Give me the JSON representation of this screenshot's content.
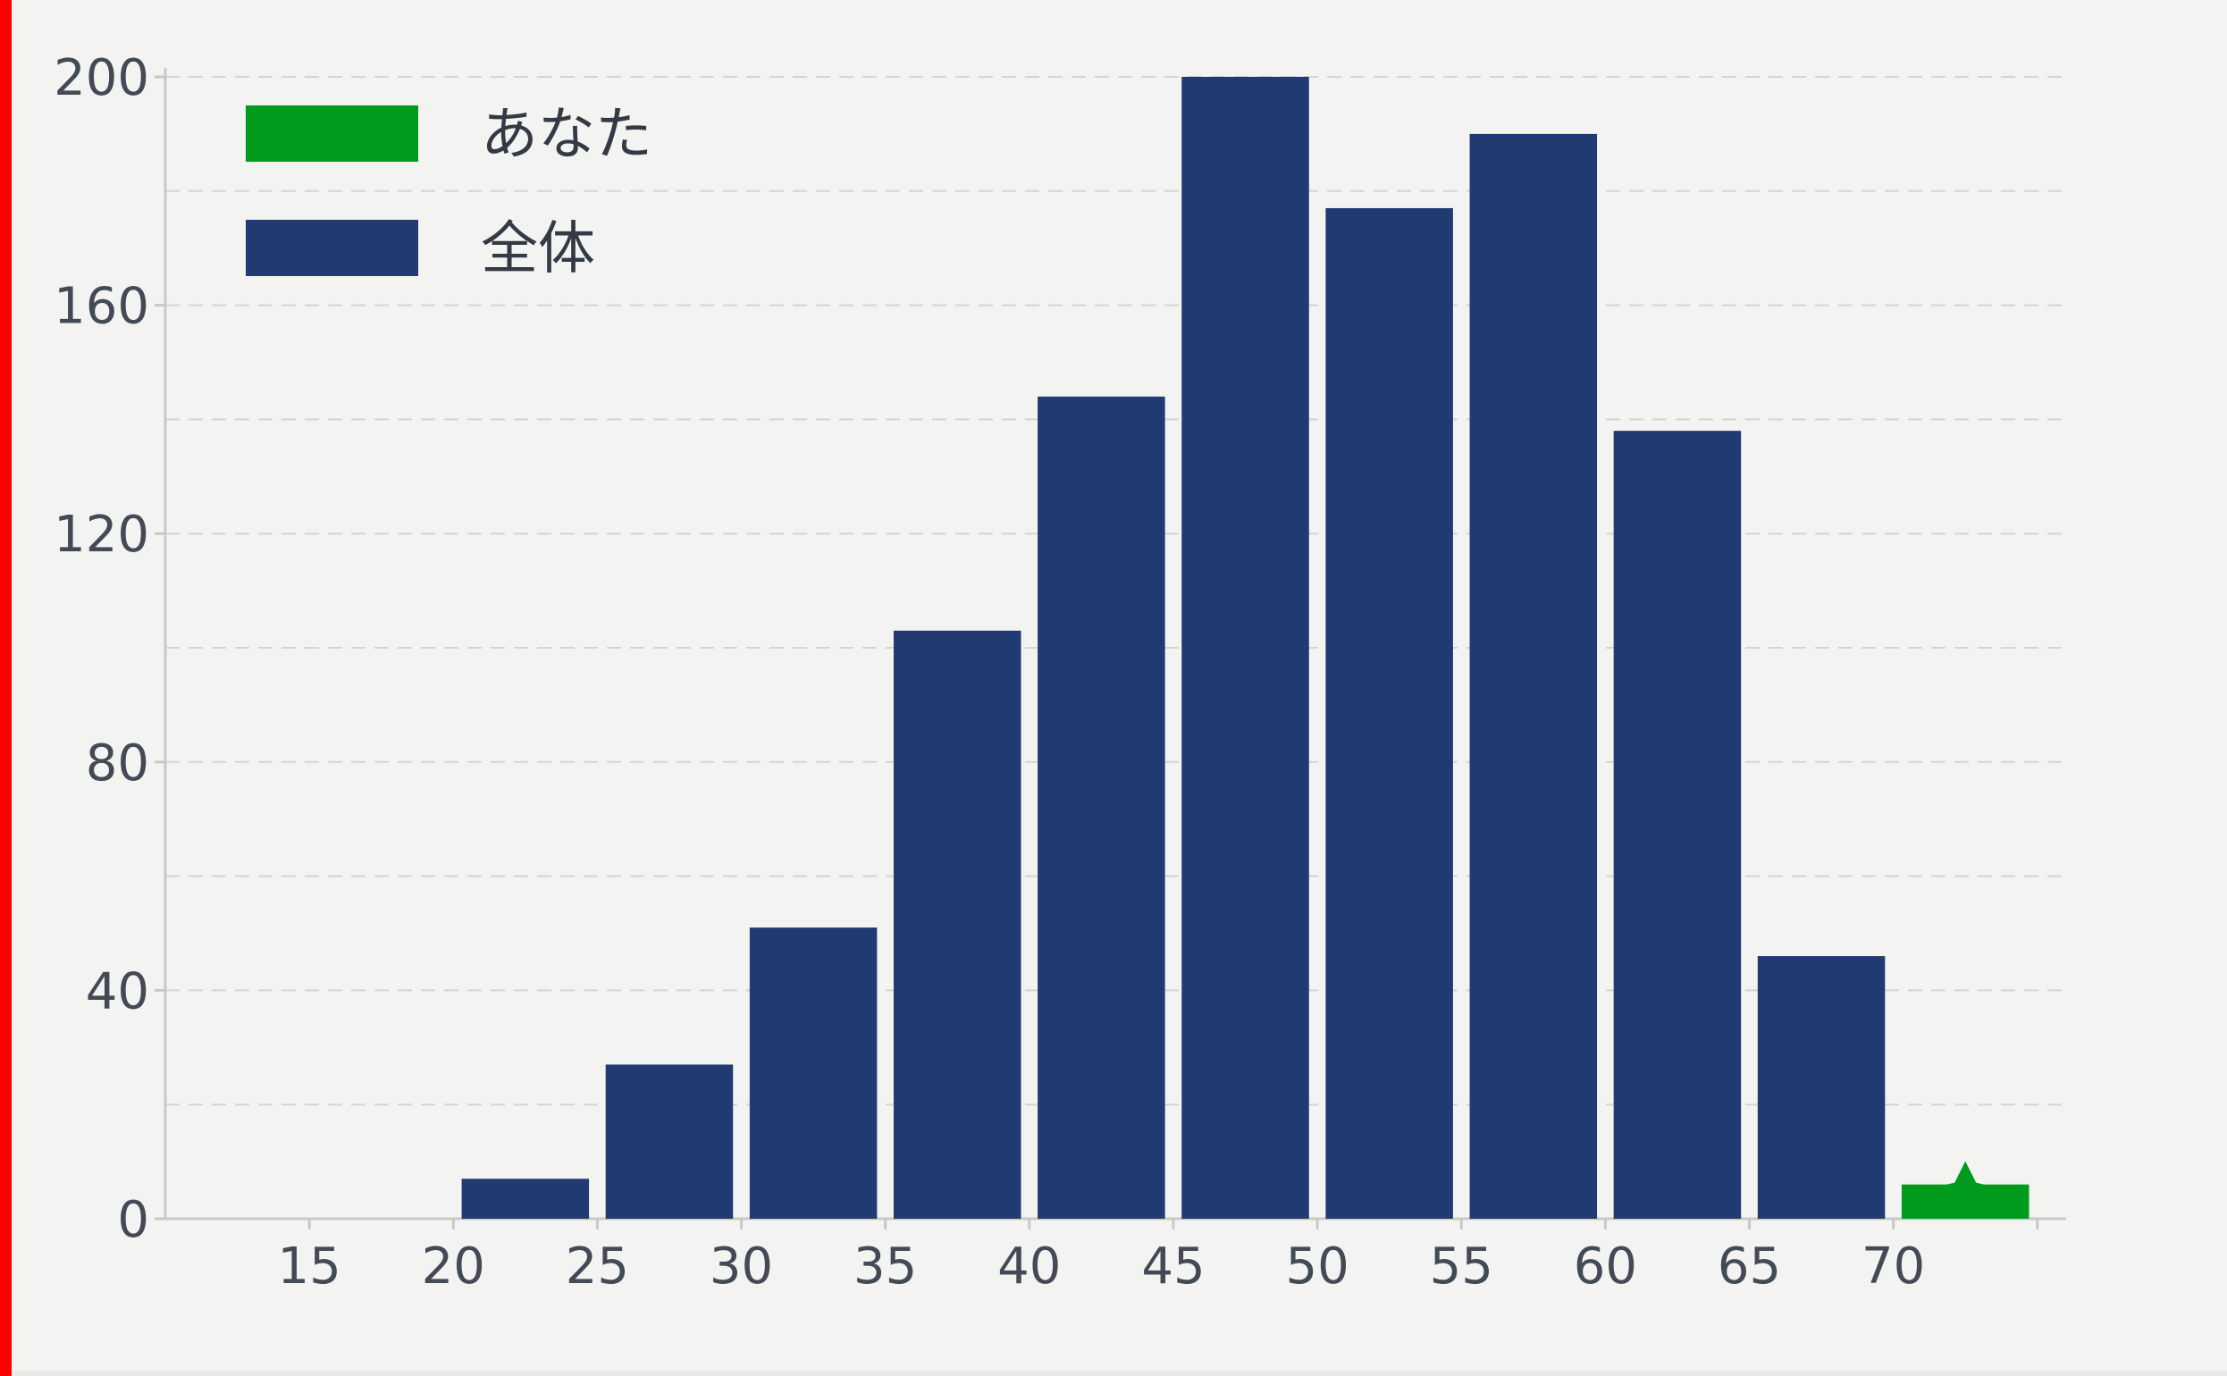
{
  "chart_data": {
    "type": "bar",
    "x_ticks": [
      "15",
      "20",
      "25",
      "30",
      "35",
      "40",
      "45",
      "50",
      "55",
      "60",
      "65",
      "70"
    ],
    "bins": [
      {
        "from": 20,
        "to": 25,
        "value": 7
      },
      {
        "from": 25,
        "to": 30,
        "value": 27
      },
      {
        "from": 30,
        "to": 35,
        "value": 51
      },
      {
        "from": 35,
        "to": 40,
        "value": 103
      },
      {
        "from": 40,
        "to": 45,
        "value": 144
      },
      {
        "from": 45,
        "to": 50,
        "value": 200
      },
      {
        "from": 50,
        "to": 55,
        "value": 177
      },
      {
        "from": 55,
        "to": 60,
        "value": 190
      },
      {
        "from": 60,
        "to": 65,
        "value": 138
      },
      {
        "from": 65,
        "to": 70,
        "value": 46
      }
    ],
    "you_bin": {
      "from": 70,
      "to": 75,
      "value": 6
    },
    "xlim": [
      10,
      76
    ],
    "ylim": [
      0,
      200
    ],
    "y_ticks": [
      0,
      40,
      80,
      120,
      160,
      200
    ],
    "grid": true,
    "legend": {
      "position": "top-left",
      "entries": [
        {
          "label": "あなた",
          "color": "#009a1d"
        },
        {
          "label": "全体",
          "color": "#223a72"
        }
      ]
    },
    "colors": {
      "you": "#009a1d",
      "all": "#223a72",
      "grid": "#d4d4d4",
      "axis": "#c8c8c8"
    }
  }
}
